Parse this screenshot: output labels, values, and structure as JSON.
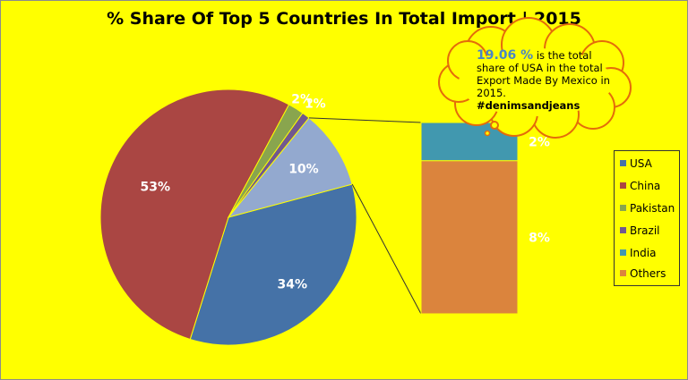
{
  "chart_data": {
    "type": "pie",
    "title": "% Share Of Top 5 Countries In Total Import | 2015",
    "series": [
      {
        "name": "USA",
        "value": 34,
        "label": "34%",
        "color": "#4572a7"
      },
      {
        "name": "China",
        "value": 53,
        "label": "53%",
        "color": "#aa4643"
      },
      {
        "name": "Pakistan",
        "value": 2,
        "label": "2%",
        "color": "#89a54e"
      },
      {
        "name": "Brazil",
        "value": 1,
        "label": "1%",
        "color": "#71588f"
      },
      {
        "name": "India",
        "value": 2,
        "label": "2%",
        "color": "#4198af"
      },
      {
        "name": "Others",
        "value": 8,
        "label": "8%",
        "color": "#db843d"
      }
    ],
    "pie_slices": [
      "USA",
      "China",
      "Pakistan",
      "Brazil"
    ],
    "aggregate_slice": {
      "label": "10%",
      "value": 10,
      "color": "#93a9cf"
    },
    "breakdown_bar": [
      "India",
      "Others"
    ],
    "legend_position": "right"
  },
  "callout": {
    "value": "19.06 %",
    "text_1": " is the total",
    "text_2": "share of USA in the total",
    "text_3": "Export Made By Mexico in",
    "text_4": "2015.",
    "tag": "#denimsandjeans"
  },
  "colors": {
    "background": "#ffff00",
    "callout_fill": "#ffff00",
    "callout_border": "#e46c0a"
  }
}
